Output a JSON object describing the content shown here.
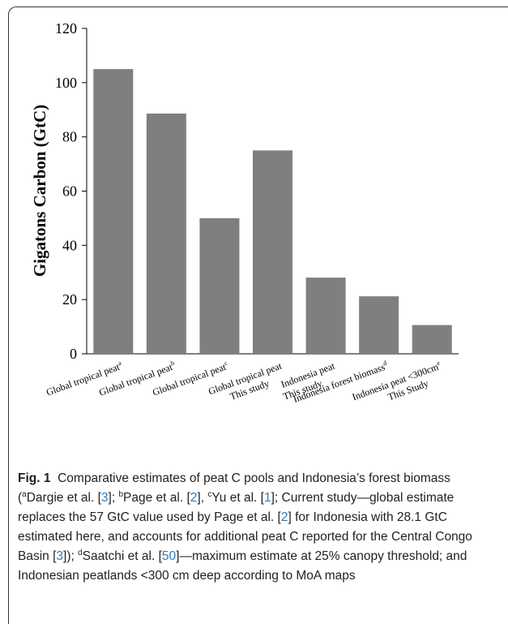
{
  "chart_data": {
    "type": "bar",
    "ylabel": "Gigatons Carbon (GtC)",
    "ylim": [
      0,
      120
    ],
    "yticks": [
      "0",
      "20",
      "40",
      "60",
      "80",
      "100",
      "120"
    ],
    "grid": false,
    "bar_color": "#7f7f7f",
    "categories": [
      {
        "line1": "Global tropical peat",
        "line1_sup": "a",
        "line2": "",
        "line2_sup": ""
      },
      {
        "line1": "Global tropical peat",
        "line1_sup": "b",
        "line2": "",
        "line2_sup": ""
      },
      {
        "line1": "Global tropical peat",
        "line1_sup": "c",
        "line2": "",
        "line2_sup": ""
      },
      {
        "line1": "Global tropical peat",
        "line1_sup": "",
        "line2": "This study",
        "line2_sup": ""
      },
      {
        "line1": "Indonesia peat",
        "line1_sup": "",
        "line2": "This study",
        "line2_sup": ""
      },
      {
        "line1": "Indonesia forest biomass",
        "line1_sup": "d",
        "line2": "",
        "line2_sup": ""
      },
      {
        "line1": "Indonesia peat <300cm",
        "line1_sup": "e",
        "line2": "This Study",
        "line2_sup": ""
      }
    ],
    "values": [
      105,
      88.6,
      50,
      75,
      28.1,
      21.2,
      10.6
    ]
  },
  "caption": {
    "figure_label": "Fig. 1",
    "t1": "Comparative estimates of peat C pools and Indonesia’s forest biomass (",
    "sup_a": "a",
    "t2": "Dargie et al. [",
    "r3a": "3",
    "t3": "]; ",
    "sup_b": "b",
    "t4": "Page et al. [",
    "r2a": "2",
    "t5": "], ",
    "sup_c": "c",
    "t6": "Yu et al. [",
    "r1": "1",
    "t7": "]; Current study—global estimate replaces the 57 GtC value used by Page et al. [",
    "r2b": "2",
    "t8": "] for Indonesia with 28.1 GtC estimated here, and accounts for additional peat C reported for the Central Congo Basin [",
    "r3b": "3",
    "t9": "]); ",
    "sup_d": "d",
    "t10": "Saatchi et al. [",
    "r50": "50",
    "t11": "]—maximum estimate at 25% canopy threshold; and Indonesian peatlands <300 cm deep according to MoA maps"
  }
}
